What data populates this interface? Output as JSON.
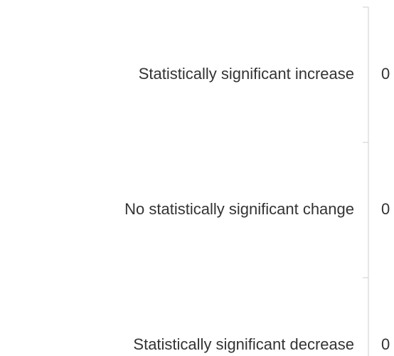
{
  "chart_data": {
    "type": "bar",
    "orientation": "horizontal",
    "categories": [
      "Statistically significant increase",
      "No statistically significant change",
      "Statistically significant decrease"
    ],
    "values": [
      0,
      0,
      0
    ],
    "color": "#4472c4"
  }
}
